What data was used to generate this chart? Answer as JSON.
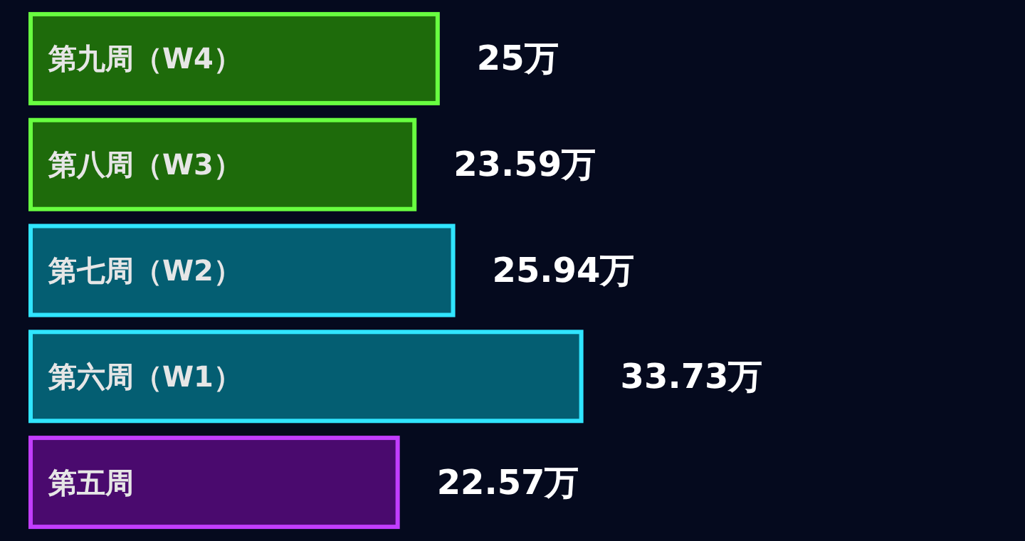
{
  "chart_data": {
    "type": "bar",
    "orientation": "horizontal",
    "categories": [
      "第九周（W4）",
      "第八周（W3）",
      "第七周（W2）",
      "第六周（W1）",
      "第五周"
    ],
    "values": [
      25,
      23.59,
      25.94,
      33.73,
      22.57
    ],
    "colors": [
      "#1e6b0b",
      "#1e6b0b",
      "#045e72",
      "#045e72",
      "#4a0a6e"
    ],
    "value_labels": [
      "25万",
      "23.59万",
      "25.94万",
      "33.73万",
      "22.57万"
    ]
  }
}
